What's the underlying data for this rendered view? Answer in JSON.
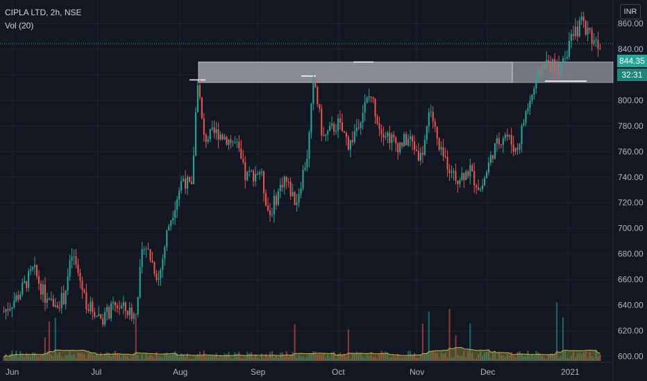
{
  "header": {
    "symbol_line": "CIPLA LTD, 2h, NSE",
    "volume_label": "Vol (20)"
  },
  "currency_button": "INR",
  "last_price_label": "844.35",
  "countdown_label": "32:31",
  "colors": {
    "background": "#131722",
    "up": "#26a69a",
    "down": "#ef5350",
    "volume_ma": "#8b8b3a",
    "zone": "#9598a1"
  },
  "chart_data": {
    "type": "candlestick",
    "y_axis": {
      "range": [
        596,
        890
      ],
      "tick_labels": [
        "860.00",
        "840.00",
        "820.00",
        "800.00",
        "780.00",
        "760.00",
        "740.00",
        "720.00",
        "700.00",
        "680.00",
        "660.00",
        "640.00",
        "620.00",
        "600.00"
      ],
      "tick_values": [
        860,
        840,
        820,
        800,
        780,
        760,
        740,
        720,
        700,
        680,
        660,
        640,
        620,
        600
      ]
    },
    "x_axis": {
      "tick_labels": [
        "Jun",
        "Jul",
        "Aug",
        "Sep",
        "Oct",
        "Nov",
        "Dec",
        "2021"
      ]
    },
    "price_path": [
      [
        0,
        635
      ],
      [
        0.025,
        648
      ],
      [
        0.05,
        668
      ],
      [
        0.075,
        640
      ],
      [
        0.1,
        645
      ],
      [
        0.115,
        680
      ],
      [
        0.14,
        640
      ],
      [
        0.165,
        630
      ],
      [
        0.19,
        640
      ],
      [
        0.22,
        632
      ],
      [
        0.235,
        690
      ],
      [
        0.26,
        660
      ],
      [
        0.275,
        700
      ],
      [
        0.3,
        740
      ],
      [
        0.315,
        730
      ],
      [
        0.325,
        818
      ],
      [
        0.335,
        770
      ],
      [
        0.36,
        775
      ],
      [
        0.39,
        765
      ],
      [
        0.405,
        740
      ],
      [
        0.43,
        745
      ],
      [
        0.445,
        710
      ],
      [
        0.47,
        740
      ],
      [
        0.49,
        720
      ],
      [
        0.51,
        760
      ],
      [
        0.52,
        818
      ],
      [
        0.535,
        770
      ],
      [
        0.56,
        782
      ],
      [
        0.58,
        765
      ],
      [
        0.6,
        790
      ],
      [
        0.615,
        805
      ],
      [
        0.63,
        780
      ],
      [
        0.66,
        765
      ],
      [
        0.68,
        770
      ],
      [
        0.7,
        755
      ],
      [
        0.715,
        795
      ],
      [
        0.73,
        760
      ],
      [
        0.76,
        740
      ],
      [
        0.78,
        745
      ],
      [
        0.8,
        730
      ],
      [
        0.82,
        760
      ],
      [
        0.84,
        775
      ],
      [
        0.86,
        760
      ],
      [
        0.875,
        790
      ],
      [
        0.89,
        810
      ],
      [
        0.905,
        830
      ],
      [
        0.93,
        825
      ],
      [
        0.95,
        845
      ],
      [
        0.97,
        862
      ],
      [
        0.985,
        850
      ],
      [
        1,
        844
      ]
    ],
    "resistance_zone": {
      "low": 814,
      "high": 830
    },
    "marked_highs": [
      816,
      819,
      830
    ],
    "last_price": 844.35,
    "volume": {
      "series_names": [
        "Vol (20)"
      ],
      "spike_count": 9
    }
  }
}
